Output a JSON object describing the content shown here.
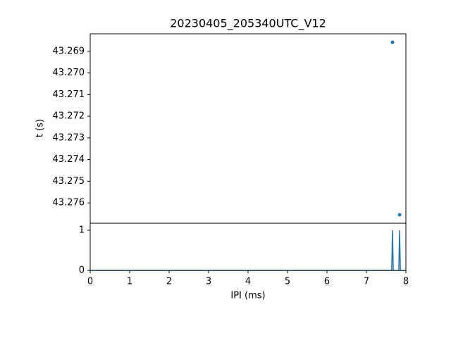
{
  "chart_data": [
    {
      "type": "scatter",
      "title": "20230405_205340UTC_V12",
      "y_label": "t (s)",
      "series": [
        {
          "color": "#1f77b4",
          "x": [
            7.66,
            7.84
          ],
          "values": [
            43.26858,
            43.27655
          ]
        }
      ],
      "xlim": [
        0,
        8
      ],
      "ylim": [
        43.27694,
        43.26819
      ],
      "yticks": [
        43.269,
        {
          "value": 43.27,
          "label": "43.270"
        },
        43.271,
        43.272,
        43.273,
        43.274,
        43.275,
        43.276
      ]
    },
    {
      "type": "line",
      "x_label": "IPI (ms)",
      "series": [
        {
          "color": "#1f77b4",
          "x": [
            0,
            7.64,
            7.66,
            7.68,
            7.82,
            7.84,
            7.86,
            8
          ],
          "values": [
            0,
            0,
            1,
            0,
            0,
            1,
            0,
            0
          ]
        }
      ],
      "xlim": [
        0,
        8
      ],
      "ylim": [
        0,
        1.175
      ],
      "xticks": [
        0,
        1,
        2,
        3,
        4,
        5,
        6,
        7,
        8
      ],
      "yticks": [
        0,
        1
      ]
    }
  ]
}
